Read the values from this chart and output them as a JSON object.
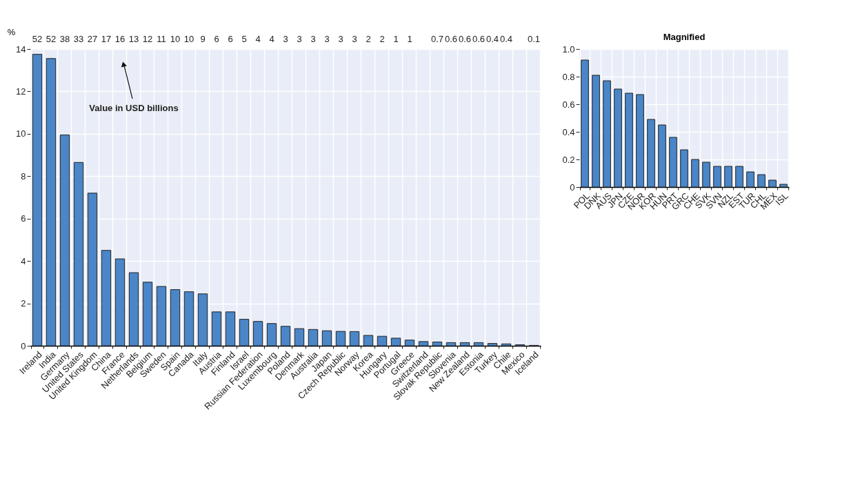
{
  "chart_data": [
    {
      "type": "bar",
      "ylabel": "%",
      "grid": true,
      "categories": [
        "Ireland",
        "India",
        "Germany",
        "United States",
        "United Kingdom",
        "China",
        "France",
        "Netherlands",
        "Belgium",
        "Sweden",
        "Spain",
        "Canada",
        "Italy",
        "Austria",
        "Finland",
        "Israel",
        "Russian Federation",
        "Luxembourg",
        "Poland",
        "Denmark",
        "Australia",
        "Japan",
        "Czech Republic",
        "Norway",
        "Korea",
        "Hungary",
        "Portugal",
        "Greece",
        "Switzerland",
        "Slovak Republic",
        "Slovenia",
        "New Zealand",
        "Estonia",
        "Turkey",
        "Chile",
        "Mexico",
        "Iceland"
      ],
      "series": [
        {
          "color": "#4a86c8",
          "values": [
            13.75,
            13.55,
            9.95,
            8.65,
            7.2,
            4.5,
            4.1,
            3.45,
            3.0,
            2.8,
            2.65,
            2.55,
            2.45,
            1.6,
            1.6,
            1.25,
            1.15,
            1.05,
            0.92,
            0.81,
            0.77,
            0.71,
            0.68,
            0.67,
            0.49,
            0.45,
            0.36,
            0.27,
            0.2,
            0.18,
            0.15,
            0.15,
            0.15,
            0.11,
            0.09,
            0.05,
            0.02
          ]
        }
      ],
      "ylim": [
        0,
        14
      ],
      "yticks": [
        0,
        2,
        4,
        6,
        8,
        10,
        12,
        14
      ],
      "annotations": [
        "Value in USD billions",
        "52",
        "52",
        "38",
        "33",
        "27",
        "17",
        "16",
        "13",
        "12",
        "11",
        "10",
        "10",
        "9",
        "6",
        "6",
        "5",
        "4",
        "4",
        "3",
        "3",
        "3",
        "3",
        "3",
        "3",
        "2",
        "2",
        "1",
        "1",
        null,
        "0.7",
        "0.6",
        "0.6",
        "0.6",
        "0.4",
        "0.4",
        null,
        "0.1"
      ]
    },
    {
      "type": "bar",
      "title": "Magnified",
      "grid": true,
      "categories": [
        "POL",
        "DNK",
        "AUS",
        "JPN",
        "CZE",
        "NOR",
        "KOR",
        "HUN",
        "PRT",
        "GRC",
        "CHE",
        "SVK",
        "SVN",
        "NZL",
        "EST",
        "TUR",
        "CHL",
        "MEX",
        "ISL"
      ],
      "series": [
        {
          "color": "#4a86c8",
          "values": [
            0.92,
            0.81,
            0.77,
            0.71,
            0.68,
            0.67,
            0.49,
            0.45,
            0.36,
            0.27,
            0.2,
            0.18,
            0.15,
            0.15,
            0.15,
            0.11,
            0.09,
            0.05,
            0.02
          ]
        }
      ],
      "ylim": [
        0,
        1
      ],
      "yticks": [
        0,
        0.2,
        0.4,
        0.6,
        0.8,
        {
          "value": 1,
          "label": "1.0"
        }
      ]
    }
  ]
}
